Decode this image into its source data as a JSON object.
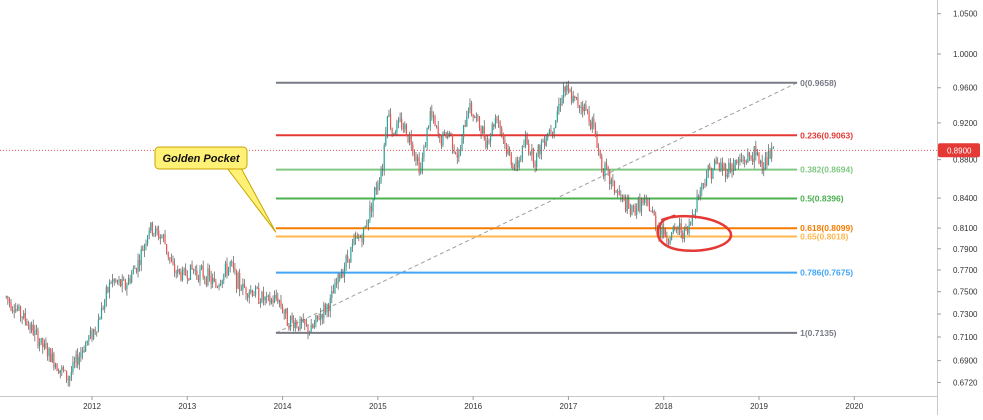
{
  "chart_data": {
    "type": "line",
    "title": "",
    "xlabel": "",
    "ylabel": "",
    "x_ticks": [
      "2012",
      "2013",
      "2014",
      "2015",
      "2016",
      "2017",
      "2018",
      "2019",
      "2020"
    ],
    "y_ticks": [
      "1.0500",
      "1.0000",
      "0.9600",
      "0.9200",
      "0.8800",
      "0.8400",
      "0.8100",
      "0.7900",
      "0.7700",
      "0.7500",
      "0.7300",
      "0.7100",
      "0.6900",
      "0.6720"
    ],
    "log_scale": true,
    "xlim": [
      2011.1,
      2020.9
    ],
    "ylim": [
      0.665,
      1.07
    ],
    "grid": false,
    "current_price": {
      "label": "0.8900",
      "value": 0.89,
      "color": "#e53935"
    },
    "fib_levels": [
      {
        "ratio": 0,
        "label": "0(0.9658)",
        "price": 0.9658,
        "color": "#787b86"
      },
      {
        "ratio": 0.236,
        "label": "0.236(0.9063)",
        "price": 0.9063,
        "color": "#e53935"
      },
      {
        "ratio": 0.382,
        "label": "0.382(0.8694)",
        "price": 0.8694,
        "color": "#81c784"
      },
      {
        "ratio": 0.5,
        "label": "0.5(0.8396)",
        "price": 0.8396,
        "color": "#4caf50"
      },
      {
        "ratio": 0.618,
        "label": "0.618(0.8099)",
        "price": 0.8099,
        "color": "#f57c00"
      },
      {
        "ratio": 0.65,
        "label": "0.65(0.8018)",
        "price": 0.8018,
        "color": "#ffb74d"
      },
      {
        "ratio": 0.786,
        "label": "0.786(0.7675)",
        "price": 0.7675,
        "color": "#42a5f5"
      },
      {
        "ratio": 1,
        "label": "1(0.7135)",
        "price": 0.7135,
        "color": "#787b86"
      }
    ],
    "fib_range": {
      "x_start": 2013.93,
      "x_end": 2019.4
    },
    "trend_line": {
      "from": {
        "x": 2013.93,
        "y": 0.7135
      },
      "to": {
        "x": 2019.4,
        "y": 0.9658
      },
      "color": "#9e9e9e"
    },
    "callout": {
      "text": "Golden Pocket",
      "anchor_x": 2013.93,
      "anchor_y": 0.8059,
      "color": "#fff176"
    },
    "highlight_circle": {
      "x": 2018.3,
      "y": 0.8045,
      "color": "#e53935"
    },
    "series": [
      {
        "x": [
          2011.1,
          2011.3,
          2011.5,
          2011.6,
          2011.75,
          2011.9,
          2012.05,
          2012.2,
          2012.35,
          2012.5,
          2012.6,
          2012.75,
          2012.85,
          2012.95,
          2013.05,
          2013.2,
          2013.3,
          2013.45,
          2013.55,
          2013.7,
          2013.85,
          2013.95,
          2014.05,
          2014.2,
          2014.3,
          2014.4,
          2014.5,
          2014.6,
          2014.75,
          2014.85,
          2014.95,
          2015.05,
          2015.1,
          2015.15,
          2015.25,
          2015.35,
          2015.45,
          2015.55,
          2015.65,
          2015.75,
          2015.85,
          2015.95,
          2016.05,
          2016.15,
          2016.25,
          2016.35,
          2016.45,
          2016.55,
          2016.65,
          2016.75,
          2016.85,
          2016.95,
          2017.05,
          2017.15,
          2017.25,
          2017.35,
          2017.45,
          2017.55,
          2017.65,
          2017.75,
          2017.85,
          2017.95,
          2018.05,
          2018.15,
          2018.25,
          2018.35,
          2018.45,
          2018.55,
          2018.65,
          2018.75,
          2018.85,
          2018.95,
          2019.05,
          2019.15
        ],
        "y": [
          0.745,
          0.725,
          0.7,
          0.69,
          0.675,
          0.7,
          0.72,
          0.76,
          0.755,
          0.78,
          0.81,
          0.8,
          0.77,
          0.765,
          0.77,
          0.765,
          0.755,
          0.775,
          0.755,
          0.75,
          0.74,
          0.745,
          0.725,
          0.72,
          0.715,
          0.73,
          0.74,
          0.765,
          0.795,
          0.805,
          0.84,
          0.875,
          0.935,
          0.91,
          0.92,
          0.9,
          0.87,
          0.93,
          0.9,
          0.91,
          0.88,
          0.94,
          0.92,
          0.9,
          0.93,
          0.89,
          0.87,
          0.9,
          0.88,
          0.905,
          0.92,
          0.96,
          0.945,
          0.94,
          0.92,
          0.875,
          0.855,
          0.84,
          0.825,
          0.835,
          0.83,
          0.81,
          0.8,
          0.81,
          0.805,
          0.84,
          0.865,
          0.875,
          0.87,
          0.875,
          0.88,
          0.885,
          0.875,
          0.89
        ]
      }
    ]
  }
}
